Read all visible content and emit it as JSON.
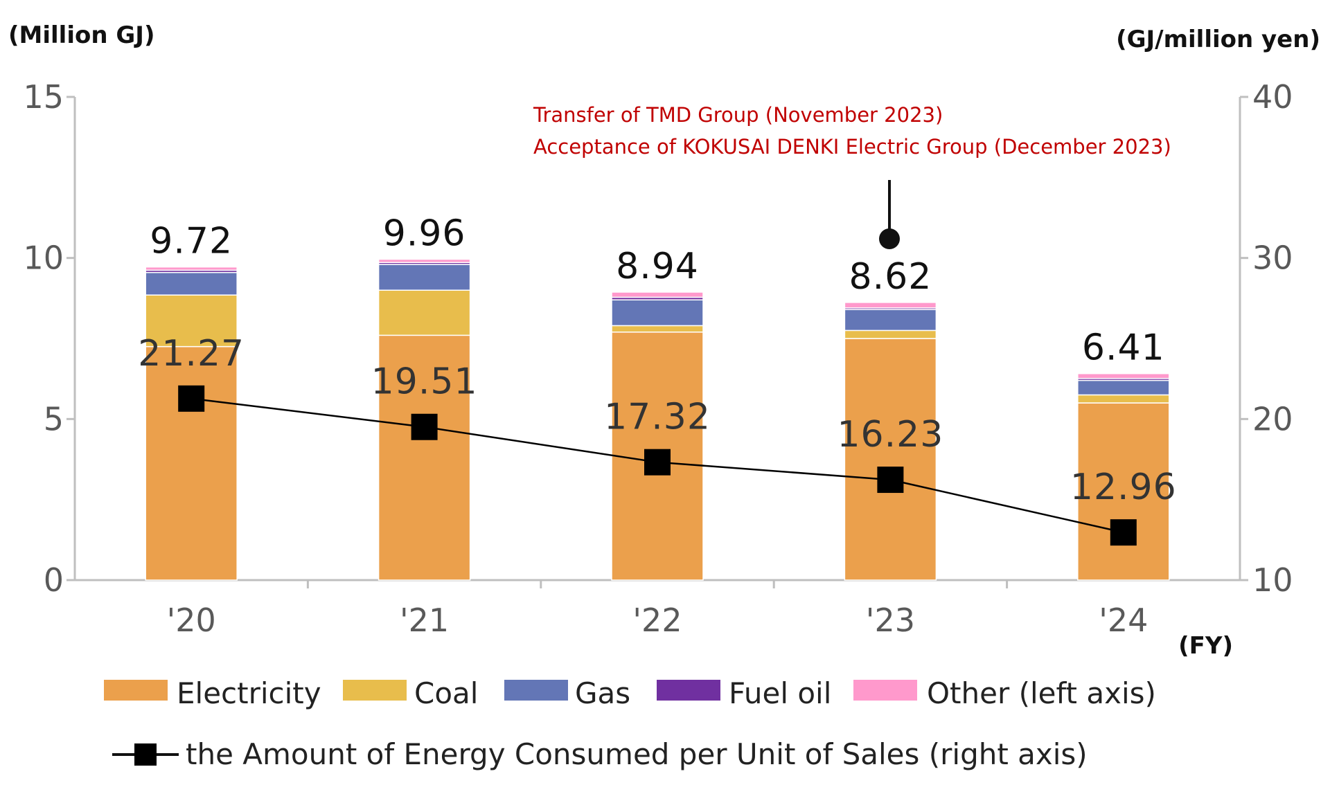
{
  "chart_data": {
    "type": "bar",
    "stacked": true,
    "categories": [
      "'20",
      "'21",
      "'22",
      "'23",
      "'24"
    ],
    "series": [
      {
        "name": "Electricity",
        "color": "#eba04c",
        "values": [
          7.25,
          7.6,
          7.7,
          7.5,
          5.5
        ]
      },
      {
        "name": "Coal",
        "color": "#e8bd4c",
        "values": [
          1.6,
          1.4,
          0.2,
          0.25,
          0.25
        ]
      },
      {
        "name": "Gas",
        "color": "#6376b6",
        "values": [
          0.7,
          0.8,
          0.8,
          0.65,
          0.45
        ]
      },
      {
        "name": "Fuel oil",
        "color": "#7030a0",
        "values": [
          0.07,
          0.06,
          0.08,
          0.05,
          0.06
        ]
      },
      {
        "name": "Other",
        "color": "#ff99cc",
        "values": [
          0.1,
          0.1,
          0.16,
          0.17,
          0.15
        ]
      }
    ],
    "totals": [
      "9.72",
      "9.96",
      "8.94",
      "8.62",
      "6.41"
    ],
    "line": {
      "name": "the Amount of Energy Consumed per Unit of Sales",
      "axis": "right",
      "values": [
        21.27,
        19.51,
        17.32,
        16.23,
        12.96
      ],
      "labels": [
        "21.27",
        "19.51",
        "17.32",
        "16.23",
        "12.96"
      ]
    },
    "left_axis": {
      "label": "(Million GJ)",
      "range": [
        0,
        15
      ],
      "ticks": [
        "0",
        "5",
        "10",
        "15"
      ]
    },
    "right_axis": {
      "label": "(GJ/million yen)",
      "range": [
        10,
        40
      ],
      "ticks": [
        "10",
        "20",
        "30",
        "40"
      ]
    },
    "x_axis_unit": "(FY)",
    "annotation": {
      "category_index": 3,
      "lines": [
        "Transfer of TMD Group (November 2023)",
        "Acceptance of KOKUSAI DENKI Electric Group (December 2023)"
      ],
      "color": "#c00000"
    },
    "legend": {
      "row1": [
        "Electricity",
        "Coal",
        "Gas",
        "Fuel oil",
        "Other (left axis)"
      ],
      "row2": "the Amount of Energy Consumed per Unit of Sales (right axis)"
    }
  }
}
